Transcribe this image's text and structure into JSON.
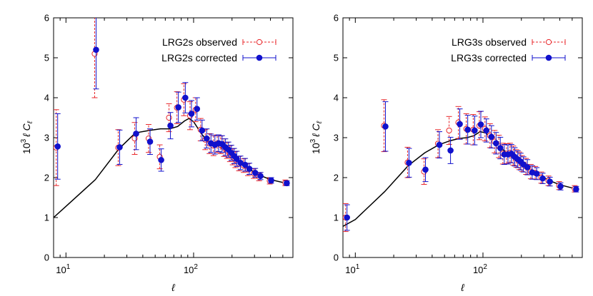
{
  "chart_data": [
    {
      "type": "scatter",
      "xscale": "log",
      "xlim": [
        8,
        600
      ],
      "ylim": [
        0,
        6
      ],
      "xlabel": "ℓ",
      "ylabel_prefix": "10",
      "ylabel_exp": "3",
      "ylabel_suffix": "ℓ C",
      "ylabel_sub": "ℓ",
      "legend_position": "top-right",
      "ytick_labels": [
        "0",
        "1",
        "2",
        "3",
        "4",
        "5",
        "6"
      ],
      "xtick_labels": [
        {
          "value": 10,
          "base": "10",
          "exp": "1"
        },
        {
          "value": 100,
          "base": "10",
          "exp": "2"
        }
      ],
      "colors": {
        "observed": "#e8262a",
        "corrected": "#1111cc",
        "model": "#000000"
      },
      "series": [
        {
          "name": "LRG2s observed",
          "style": "open-circle",
          "points": [
            {
              "x": 8.5,
              "y": 2.75,
              "err": 0.95
            },
            {
              "x": 17,
              "y": 5.1,
              "err": 1.1
            },
            {
              "x": 26,
              "y": 2.75,
              "err": 0.45
            },
            {
              "x": 35,
              "y": 2.98,
              "err": 0.4
            },
            {
              "x": 45,
              "y": 2.98,
              "err": 0.35
            },
            {
              "x": 55,
              "y": 2.52,
              "err": 0.3
            },
            {
              "x": 65,
              "y": 3.5,
              "err": 0.35
            },
            {
              "x": 75,
              "y": 3.75,
              "err": 0.4
            },
            {
              "x": 85,
              "y": 3.95,
              "err": 0.4
            },
            {
              "x": 95,
              "y": 3.55,
              "err": 0.35
            },
            {
              "x": 105,
              "y": 3.7,
              "err": 0.3
            },
            {
              "x": 115,
              "y": 3.2,
              "err": 0.28
            },
            {
              "x": 125,
              "y": 2.95,
              "err": 0.25
            },
            {
              "x": 135,
              "y": 2.85,
              "err": 0.25
            },
            {
              "x": 145,
              "y": 2.8,
              "err": 0.25
            },
            {
              "x": 155,
              "y": 2.85,
              "err": 0.22
            },
            {
              "x": 165,
              "y": 2.82,
              "err": 0.22
            },
            {
              "x": 175,
              "y": 2.75,
              "err": 0.22
            },
            {
              "x": 185,
              "y": 2.68,
              "err": 0.2
            },
            {
              "x": 195,
              "y": 2.6,
              "err": 0.2
            },
            {
              "x": 205,
              "y": 2.52,
              "err": 0.2
            },
            {
              "x": 215,
              "y": 2.45,
              "err": 0.2
            },
            {
              "x": 230,
              "y": 2.35,
              "err": 0.18
            },
            {
              "x": 250,
              "y": 2.3,
              "err": 0.17
            },
            {
              "x": 270,
              "y": 2.2,
              "err": 0.15
            },
            {
              "x": 300,
              "y": 2.1,
              "err": 0.12
            },
            {
              "x": 330,
              "y": 2.02,
              "err": 0.1
            },
            {
              "x": 400,
              "y": 1.92,
              "err": 0.08
            },
            {
              "x": 530,
              "y": 1.87,
              "err": 0.07
            }
          ]
        },
        {
          "name": "LRG2s corrected",
          "style": "filled-circle",
          "points": [
            {
              "x": 8.5,
              "y": 2.78,
              "err": 0.82
            },
            {
              "x": 17,
              "y": 5.2,
              "err": 0.98
            },
            {
              "x": 26,
              "y": 2.76,
              "err": 0.43
            },
            {
              "x": 35,
              "y": 3.1,
              "err": 0.4
            },
            {
              "x": 45,
              "y": 2.9,
              "err": 0.32
            },
            {
              "x": 55,
              "y": 2.44,
              "err": 0.28
            },
            {
              "x": 65,
              "y": 3.3,
              "err": 0.33
            },
            {
              "x": 75,
              "y": 3.76,
              "err": 0.38
            },
            {
              "x": 85,
              "y": 4.0,
              "err": 0.38
            },
            {
              "x": 95,
              "y": 3.6,
              "err": 0.33
            },
            {
              "x": 105,
              "y": 3.72,
              "err": 0.28
            },
            {
              "x": 115,
              "y": 3.18,
              "err": 0.26
            },
            {
              "x": 125,
              "y": 2.98,
              "err": 0.24
            },
            {
              "x": 135,
              "y": 2.86,
              "err": 0.23
            },
            {
              "x": 145,
              "y": 2.82,
              "err": 0.23
            },
            {
              "x": 155,
              "y": 2.86,
              "err": 0.21
            },
            {
              "x": 165,
              "y": 2.84,
              "err": 0.21
            },
            {
              "x": 175,
              "y": 2.76,
              "err": 0.21
            },
            {
              "x": 185,
              "y": 2.7,
              "err": 0.19
            },
            {
              "x": 195,
              "y": 2.62,
              "err": 0.19
            },
            {
              "x": 205,
              "y": 2.54,
              "err": 0.19
            },
            {
              "x": 215,
              "y": 2.47,
              "err": 0.19
            },
            {
              "x": 230,
              "y": 2.37,
              "err": 0.17
            },
            {
              "x": 250,
              "y": 2.32,
              "err": 0.16
            },
            {
              "x": 270,
              "y": 2.22,
              "err": 0.14
            },
            {
              "x": 300,
              "y": 2.12,
              "err": 0.11
            },
            {
              "x": 330,
              "y": 2.04,
              "err": 0.09
            },
            {
              "x": 400,
              "y": 1.93,
              "err": 0.07
            },
            {
              "x": 530,
              "y": 1.86,
              "err": 0.06
            }
          ]
        },
        {
          "name": "model",
          "style": "line",
          "points": [
            {
              "x": 8,
              "y": 1.0
            },
            {
              "x": 10,
              "y": 1.28
            },
            {
              "x": 17,
              "y": 1.95
            },
            {
              "x": 26,
              "y": 2.72
            },
            {
              "x": 35,
              "y": 3.12
            },
            {
              "x": 45,
              "y": 3.18
            },
            {
              "x": 55,
              "y": 3.22
            },
            {
              "x": 65,
              "y": 3.22
            },
            {
              "x": 75,
              "y": 3.28
            },
            {
              "x": 85,
              "y": 3.42
            },
            {
              "x": 92,
              "y": 3.48
            },
            {
              "x": 100,
              "y": 3.4
            },
            {
              "x": 115,
              "y": 3.1
            },
            {
              "x": 130,
              "y": 2.9
            },
            {
              "x": 150,
              "y": 2.82
            },
            {
              "x": 170,
              "y": 2.72
            },
            {
              "x": 200,
              "y": 2.55
            },
            {
              "x": 230,
              "y": 2.38
            },
            {
              "x": 270,
              "y": 2.22
            },
            {
              "x": 330,
              "y": 2.06
            },
            {
              "x": 400,
              "y": 1.95
            },
            {
              "x": 530,
              "y": 1.86
            }
          ]
        }
      ]
    },
    {
      "type": "scatter",
      "xscale": "log",
      "xlim": [
        8,
        600
      ],
      "ylim": [
        0,
        6
      ],
      "xlabel": "ℓ",
      "ylabel_prefix": "10",
      "ylabel_exp": "3",
      "ylabel_suffix": "ℓ C",
      "ylabel_sub": "ℓ",
      "legend_position": "top-right",
      "ytick_labels": [
        "0",
        "1",
        "2",
        "3",
        "4",
        "5",
        "6"
      ],
      "xtick_labels": [
        {
          "value": 10,
          "base": "10",
          "exp": "1"
        },
        {
          "value": 100,
          "base": "10",
          "exp": "2"
        }
      ],
      "colors": {
        "observed": "#e8262a",
        "corrected": "#1111cc",
        "model": "#000000"
      },
      "series": [
        {
          "name": "LRG3s observed",
          "style": "open-circle",
          "points": [
            {
              "x": 8.5,
              "y": 1.0,
              "err": 0.35
            },
            {
              "x": 17,
              "y": 3.3,
              "err": 0.65
            },
            {
              "x": 26,
              "y": 2.38,
              "err": 0.38
            },
            {
              "x": 35,
              "y": 2.15,
              "err": 0.32
            },
            {
              "x": 45,
              "y": 2.85,
              "err": 0.35
            },
            {
              "x": 55,
              "y": 3.18,
              "err": 0.35
            },
            {
              "x": 65,
              "y": 3.38,
              "err": 0.4
            },
            {
              "x": 75,
              "y": 3.22,
              "err": 0.38
            },
            {
              "x": 85,
              "y": 3.2,
              "err": 0.38
            },
            {
              "x": 95,
              "y": 3.3,
              "err": 0.35
            },
            {
              "x": 105,
              "y": 3.22,
              "err": 0.3
            },
            {
              "x": 115,
              "y": 3.05,
              "err": 0.3
            },
            {
              "x": 125,
              "y": 2.9,
              "err": 0.28
            },
            {
              "x": 135,
              "y": 2.78,
              "err": 0.28
            },
            {
              "x": 145,
              "y": 2.6,
              "err": 0.26
            },
            {
              "x": 155,
              "y": 2.6,
              "err": 0.25
            },
            {
              "x": 165,
              "y": 2.62,
              "err": 0.24
            },
            {
              "x": 175,
              "y": 2.55,
              "err": 0.24
            },
            {
              "x": 185,
              "y": 2.48,
              "err": 0.22
            },
            {
              "x": 195,
              "y": 2.42,
              "err": 0.22
            },
            {
              "x": 205,
              "y": 2.35,
              "err": 0.2
            },
            {
              "x": 220,
              "y": 2.28,
              "err": 0.2
            },
            {
              "x": 240,
              "y": 2.15,
              "err": 0.18
            },
            {
              "x": 260,
              "y": 2.12,
              "err": 0.16
            },
            {
              "x": 290,
              "y": 2.0,
              "err": 0.14
            },
            {
              "x": 330,
              "y": 1.92,
              "err": 0.12
            },
            {
              "x": 400,
              "y": 1.8,
              "err": 0.1
            },
            {
              "x": 530,
              "y": 1.72,
              "err": 0.08
            }
          ]
        },
        {
          "name": "LRG3s corrected",
          "style": "filled-circle",
          "points": [
            {
              "x": 8.5,
              "y": 1.0,
              "err": 0.32
            },
            {
              "x": 17,
              "y": 3.28,
              "err": 0.62
            },
            {
              "x": 26,
              "y": 2.37,
              "err": 0.36
            },
            {
              "x": 35,
              "y": 2.2,
              "err": 0.3
            },
            {
              "x": 45,
              "y": 2.82,
              "err": 0.33
            },
            {
              "x": 55,
              "y": 2.68,
              "err": 0.33
            },
            {
              "x": 65,
              "y": 3.34,
              "err": 0.38
            },
            {
              "x": 75,
              "y": 3.2,
              "err": 0.36
            },
            {
              "x": 85,
              "y": 3.18,
              "err": 0.36
            },
            {
              "x": 95,
              "y": 3.33,
              "err": 0.33
            },
            {
              "x": 105,
              "y": 3.18,
              "err": 0.29
            },
            {
              "x": 115,
              "y": 3.02,
              "err": 0.28
            },
            {
              "x": 125,
              "y": 2.86,
              "err": 0.27
            },
            {
              "x": 135,
              "y": 2.74,
              "err": 0.27
            },
            {
              "x": 145,
              "y": 2.58,
              "err": 0.25
            },
            {
              "x": 155,
              "y": 2.58,
              "err": 0.24
            },
            {
              "x": 165,
              "y": 2.6,
              "err": 0.23
            },
            {
              "x": 175,
              "y": 2.52,
              "err": 0.23
            },
            {
              "x": 185,
              "y": 2.46,
              "err": 0.21
            },
            {
              "x": 195,
              "y": 2.4,
              "err": 0.21
            },
            {
              "x": 205,
              "y": 2.33,
              "err": 0.19
            },
            {
              "x": 220,
              "y": 2.26,
              "err": 0.19
            },
            {
              "x": 240,
              "y": 2.13,
              "err": 0.17
            },
            {
              "x": 260,
              "y": 2.1,
              "err": 0.15
            },
            {
              "x": 290,
              "y": 1.98,
              "err": 0.13
            },
            {
              "x": 330,
              "y": 1.9,
              "err": 0.11
            },
            {
              "x": 400,
              "y": 1.78,
              "err": 0.09
            },
            {
              "x": 530,
              "y": 1.71,
              "err": 0.07
            }
          ]
        },
        {
          "name": "model",
          "style": "line",
          "points": [
            {
              "x": 8,
              "y": 0.78
            },
            {
              "x": 10,
              "y": 0.95
            },
            {
              "x": 17,
              "y": 1.65
            },
            {
              "x": 26,
              "y": 2.3
            },
            {
              "x": 35,
              "y": 2.62
            },
            {
              "x": 45,
              "y": 2.82
            },
            {
              "x": 55,
              "y": 2.92
            },
            {
              "x": 65,
              "y": 2.98
            },
            {
              "x": 75,
              "y": 3.0
            },
            {
              "x": 85,
              "y": 3.05
            },
            {
              "x": 95,
              "y": 3.15
            },
            {
              "x": 105,
              "y": 3.12
            },
            {
              "x": 120,
              "y": 2.95
            },
            {
              "x": 140,
              "y": 2.72
            },
            {
              "x": 160,
              "y": 2.6
            },
            {
              "x": 180,
              "y": 2.5
            },
            {
              "x": 200,
              "y": 2.38
            },
            {
              "x": 230,
              "y": 2.22
            },
            {
              "x": 270,
              "y": 2.08
            },
            {
              "x": 330,
              "y": 1.93
            },
            {
              "x": 400,
              "y": 1.82
            },
            {
              "x": 530,
              "y": 1.72
            }
          ]
        }
      ]
    }
  ]
}
